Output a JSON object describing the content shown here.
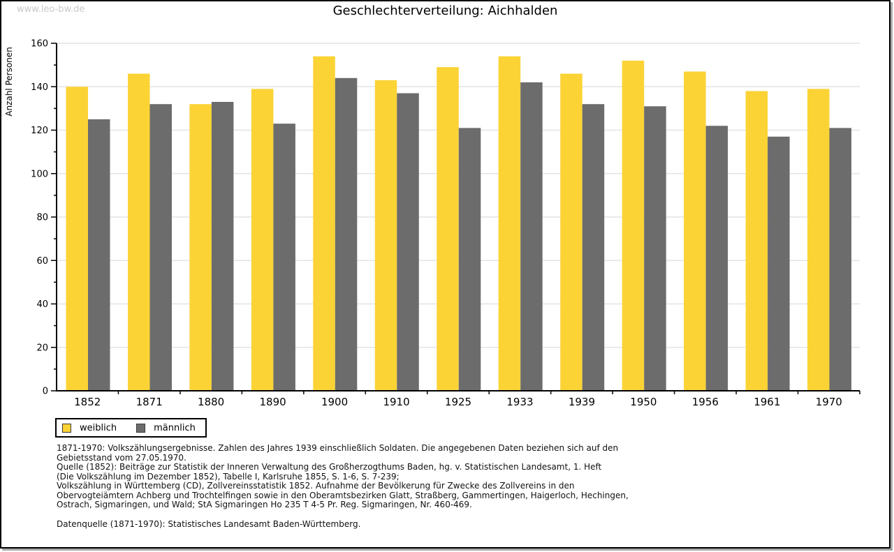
{
  "watermark": "www.leo-bw.de",
  "title": "Geschlechterverteilung: Aichhalden",
  "chart_data": {
    "type": "bar",
    "title": "Geschlechterverteilung: Aichhalden",
    "categories": [
      "1852",
      "1871",
      "1880",
      "1890",
      "1900",
      "1910",
      "1925",
      "1933",
      "1939",
      "1950",
      "1956",
      "1961",
      "1970"
    ],
    "series": [
      {
        "name": "weiblich",
        "color": "#FBD335",
        "values": [
          140,
          146,
          132,
          139,
          154,
          143,
          149,
          154,
          146,
          152,
          147,
          138,
          139
        ]
      },
      {
        "name": "männlich",
        "color": "#6C6C6C",
        "values": [
          125,
          132,
          133,
          123,
          144,
          137,
          121,
          142,
          132,
          131,
          122,
          117,
          121
        ]
      }
    ],
    "xlabel": "",
    "ylabel": "Anzahl Personen",
    "ylim": [
      0,
      160
    ],
    "ytick_step": 20,
    "yminor_step": 10,
    "grid": true,
    "gridline_color": "#e4e4e4",
    "legend_position": "bottom-left"
  },
  "legend": {
    "items": [
      {
        "label": "weiblich",
        "color": "#FBD335"
      },
      {
        "label": "männlich",
        "color": "#6C6C6C"
      }
    ]
  },
  "footnotes": [
    "1871-1970: Volkszählungsergebnisse. Zahlen des Jahres 1939 einschließlich Soldaten. Die angegebenen Daten beziehen sich auf den",
    "Gebietsstand vom 27.05.1970.",
    "Quelle (1852): Beiträge zur Statistik der Inneren Verwaltung des Großherzogthums Baden, hg. v. Statistischen Landesamt, 1. Heft",
    "(Die Volkszählung im Dezember 1852), Tabelle I, Karlsruhe 1855, S. 1-6, S. 7-239;",
    "Volkszählung in Württemberg (CD), Zollvereinsstatistik 1852. Aufnahme der Bevölkerung für Zwecke des Zollvereins in den",
    "Obervogteiämtern Achberg und Trochtelfingen sowie in den Oberamtsbezirken Glatt, Straßberg, Gammertingen, Haigerloch, Hechingen,",
    "Ostrach, Sigmaringen, und Wald; StA Sigmaringen Ho 235 T 4-5 Pr. Reg. Sigmaringen, Nr. 460-469."
  ],
  "datasource": "Datenquelle (1871-1970): Statistisches Landesamt Baden-Württemberg."
}
